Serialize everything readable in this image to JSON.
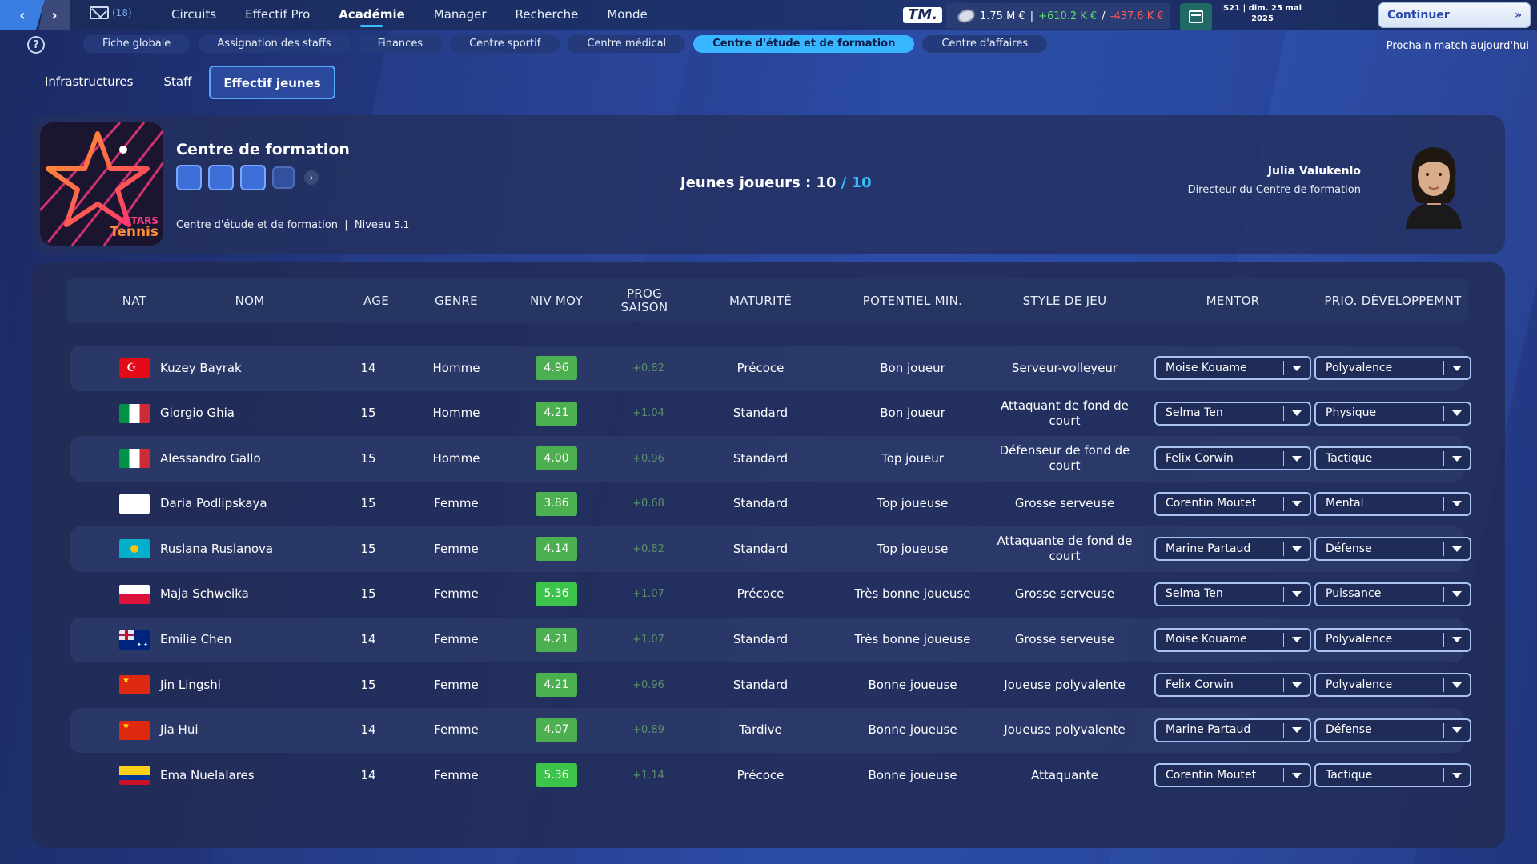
{
  "topbar": {
    "mail_count": "(18)",
    "menu": [
      {
        "label": "Circuits",
        "active": false
      },
      {
        "label": "Effectif Pro",
        "active": false
      },
      {
        "label": "Académie",
        "active": true
      },
      {
        "label": "Manager",
        "active": false
      },
      {
        "label": "Recherche",
        "active": false
      },
      {
        "label": "Monde",
        "active": false
      }
    ],
    "logo": "TM.",
    "finance": {
      "balance": "1.75 M €",
      "separator": "|",
      "income": "+610.2 K €",
      "slash": "/",
      "expense": "-437.6 K €"
    },
    "date_line1": "S21 | dim. 25 mai",
    "date_line2": "2025",
    "continue_label": "Continuer",
    "continue_chevron": "»",
    "next_match": "Prochain match aujourd'hui"
  },
  "subtabs": [
    {
      "label": "Fiche globale",
      "active": false
    },
    {
      "label": "Assignation des staffs",
      "active": false
    },
    {
      "label": "Finances",
      "active": false
    },
    {
      "label": "Centre sportif",
      "active": false
    },
    {
      "label": "Centre médical",
      "active": false
    },
    {
      "label": "Centre d'étude et de formation",
      "active": true
    },
    {
      "label": "Centre d'affaires",
      "active": false
    }
  ],
  "sectiontabs": [
    {
      "label": "Infrastructures",
      "active": false
    },
    {
      "label": "Staff",
      "active": false
    },
    {
      "label": "Effectif jeunes",
      "active": true
    }
  ],
  "info": {
    "logo_line1": "STARS",
    "logo_line2": "Tennis",
    "title": "Centre de formation",
    "subtitle": "Centre d'étude et de formation",
    "subtitle_sep": "|",
    "level_label": "Niveau",
    "level_value": "5.1",
    "young_label": "Jeunes joueurs :",
    "young_count": "10",
    "young_slash": "/",
    "young_max": "10",
    "director_name": "Julia Valukenlo",
    "director_role": "Directeur du Centre de formation"
  },
  "table": {
    "headers": [
      "NAT",
      "NOM",
      "AGE",
      "GENRE",
      "NIV MOY",
      "PROG SAISON",
      "MATURITÉ",
      "POTENTIEL MIN.",
      "STYLE DE JEU",
      "MENTOR",
      "PRIO. DÉVELOPPEMNT"
    ],
    "rows": [
      {
        "flag": "tr",
        "name": "Kuzey Bayrak",
        "age": "14",
        "genre": "Homme",
        "niv": "4.96",
        "prog": "+0.82",
        "maturite": "Précoce",
        "potentiel": "Bon joueur",
        "style": "Serveur-volleyeur",
        "mentor": "Moise Kouame",
        "prio": "Polyvalence"
      },
      {
        "flag": "it",
        "name": "Giorgio Ghia",
        "age": "15",
        "genre": "Homme",
        "niv": "4.21",
        "prog": "+1.04",
        "maturite": "Standard",
        "potentiel": "Bon joueur",
        "style": "Attaquant de fond de court",
        "mentor": "Selma Ten",
        "prio": "Physique"
      },
      {
        "flag": "it",
        "name": "Alessandro Gallo",
        "age": "15",
        "genre": "Homme",
        "niv": "4.00",
        "prog": "+0.96",
        "maturite": "Standard",
        "potentiel": "Top joueur",
        "style": "Défenseur de fond de court",
        "mentor": "Felix Corwin",
        "prio": "Tactique"
      },
      {
        "flag": "white",
        "name": "Daria Podlipskaya",
        "age": "15",
        "genre": "Femme",
        "niv": "3.86",
        "prog": "+0.68",
        "maturite": "Standard",
        "potentiel": "Top joueuse",
        "style": "Grosse serveuse",
        "mentor": "Corentin Moutet",
        "prio": "Mental"
      },
      {
        "flag": "kz",
        "name": "Ruslana Ruslanova",
        "age": "15",
        "genre": "Femme",
        "niv": "4.14",
        "prog": "+0.82",
        "maturite": "Standard",
        "potentiel": "Top joueuse",
        "style": "Attaquante de fond de court",
        "mentor": "Marine Partaud",
        "prio": "Défense"
      },
      {
        "flag": "pl",
        "name": "Maja Schweika",
        "age": "15",
        "genre": "Femme",
        "niv": "5.36",
        "prog": "+1.07",
        "maturite": "Précoce",
        "potentiel": "Très bonne joueuse",
        "style": "Grosse serveuse",
        "mentor": "Selma Ten",
        "prio": "Puissance"
      },
      {
        "flag": "au",
        "name": "Emilie Chen",
        "age": "14",
        "genre": "Femme",
        "niv": "4.21",
        "prog": "+1.07",
        "maturite": "Standard",
        "potentiel": "Très bonne joueuse",
        "style": "Grosse serveuse",
        "mentor": "Moise Kouame",
        "prio": "Polyvalence"
      },
      {
        "flag": "cn",
        "name": "Jin Lingshi",
        "age": "15",
        "genre": "Femme",
        "niv": "4.21",
        "prog": "+0.96",
        "maturite": "Standard",
        "potentiel": "Bonne joueuse",
        "style": "Joueuse polyvalente",
        "mentor": "Felix Corwin",
        "prio": "Polyvalence"
      },
      {
        "flag": "cn",
        "name": "Jia Hui",
        "age": "14",
        "genre": "Femme",
        "niv": "4.07",
        "prog": "+0.89",
        "maturite": "Tardive",
        "potentiel": "Bonne joueuse",
        "style": "Joueuse polyvalente",
        "mentor": "Marine Partaud",
        "prio": "Défense"
      },
      {
        "flag": "co",
        "name": "Ema Nuelalares",
        "age": "14",
        "genre": "Femme",
        "niv": "5.36",
        "prog": "+1.14",
        "maturite": "Précoce",
        "potentiel": "Bonne joueuse",
        "style": "Attaquante",
        "mentor": "Corentin Moutet",
        "prio": "Tactique"
      }
    ]
  },
  "colors": {
    "accent": "#36c0ff",
    "positive": "#5ce06b",
    "negative": "#ff5a5a",
    "badge": "#4caf50"
  }
}
